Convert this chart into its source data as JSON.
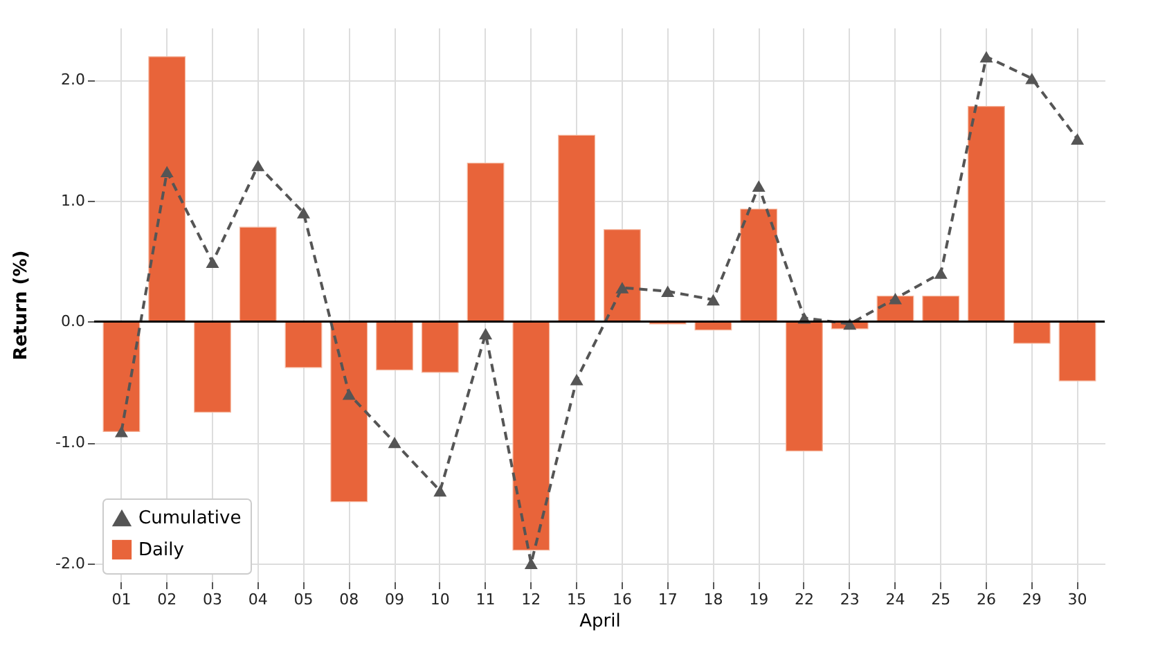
{
  "chart_data": {
    "type": "bar",
    "xlabel": "April",
    "ylabel": "Return (%)",
    "categories": [
      "01",
      "02",
      "03",
      "04",
      "05",
      "08",
      "09",
      "10",
      "11",
      "12",
      "15",
      "16",
      "17",
      "18",
      "19",
      "22",
      "23",
      "24",
      "25",
      "26",
      "29",
      "30"
    ],
    "series": [
      {
        "name": "Daily",
        "color": "#e8643a",
        "values": [
          -0.91,
          2.19,
          -0.75,
          0.78,
          -0.38,
          -1.49,
          -0.4,
          -0.42,
          1.31,
          -1.89,
          1.54,
          0.76,
          -0.02,
          -0.07,
          0.93,
          -1.07,
          -0.06,
          0.21,
          0.21,
          1.78,
          -0.18,
          -0.49
        ]
      },
      {
        "name": "Cumulative",
        "type": "line",
        "color": "#555555",
        "marker": "triangle",
        "line_style": "dashed",
        "values": [
          -0.91,
          1.24,
          0.49,
          1.29,
          0.9,
          -0.6,
          -1.0,
          -1.4,
          -0.1,
          -2.0,
          -0.48,
          0.28,
          0.25,
          0.18,
          1.12,
          0.03,
          -0.02,
          0.19,
          0.4,
          2.19,
          2.01,
          1.51
        ]
      }
    ],
    "ylim": [
      -2.15,
      2.43
    ],
    "yticks": [
      {
        "value": -2,
        "label": "-2.0"
      },
      {
        "value": -1,
        "label": "-1.0"
      },
      {
        "value": 0,
        "label": "0.0"
      },
      {
        "value": 1,
        "label": "1.0"
      },
      {
        "value": 2,
        "label": "2.0"
      }
    ],
    "ref_lines": [
      {
        "axis": "y",
        "value": 0,
        "color": "#000000"
      }
    ],
    "grid": true,
    "legend": "bottom left"
  }
}
